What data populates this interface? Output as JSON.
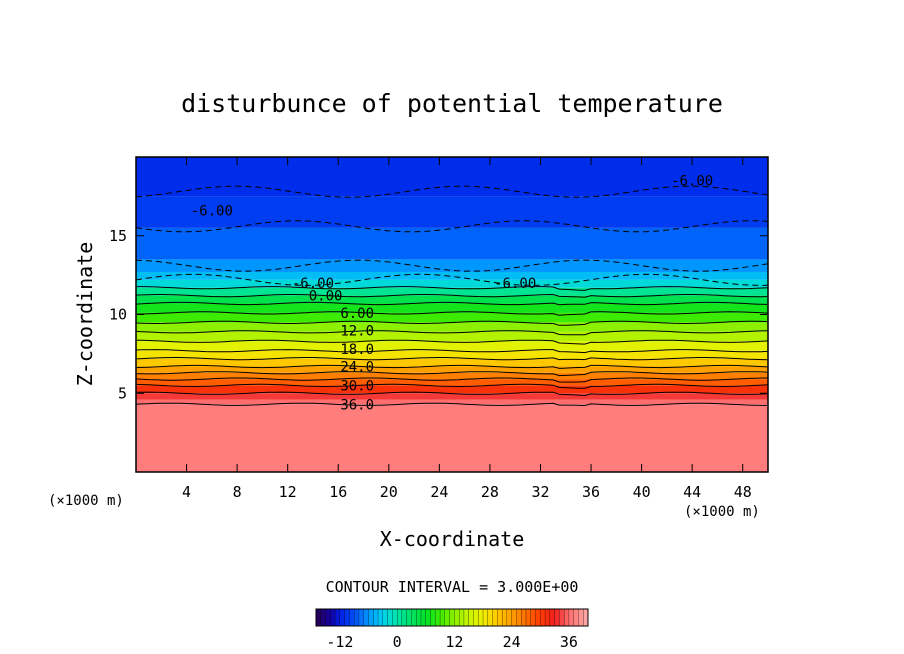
{
  "chart_data": {
    "type": "contour",
    "title": "disturbunce of potential temperature",
    "xlabel": "X-coordinate",
    "ylabel": "Z-coordinate",
    "x_unit": "(×1000 m)",
    "y_unit": "(×1000 m)",
    "xlim": [
      0,
      50
    ],
    "ylim": [
      0,
      20
    ],
    "x_ticks": [
      "4",
      "8",
      "12",
      "16",
      "20",
      "24",
      "28",
      "32",
      "36",
      "40",
      "44",
      "48"
    ],
    "x_tick_values": [
      4,
      8,
      12,
      16,
      20,
      24,
      28,
      32,
      36,
      40,
      44,
      48
    ],
    "y_ticks": [
      "5",
      "10",
      "15"
    ],
    "y_tick_values": [
      5,
      10,
      15
    ],
    "contour_interval_text": "CONTOUR INTERVAL = 3.000E+00",
    "contour_interval": 3.0,
    "contour_labels": [
      {
        "text": "-6.00",
        "x": 30,
        "z": 12.0
      },
      {
        "text": "-6.00",
        "x": 14,
        "z": 12.0
      },
      {
        "text": "-6.00",
        "x": 6,
        "z": 16.6
      },
      {
        "text": "-6.00",
        "x": 44,
        "z": 18.5
      },
      {
        "text": "0.00",
        "x": 15,
        "z": 11.2
      },
      {
        "text": "6.00",
        "x": 17.5,
        "z": 10.1
      },
      {
        "text": "12.0",
        "x": 17.5,
        "z": 9.0
      },
      {
        "text": "18.0",
        "x": 17.5,
        "z": 7.8
      },
      {
        "text": "24.0",
        "x": 17.5,
        "z": 6.7
      },
      {
        "text": "30.0",
        "x": 17.5,
        "z": 5.5
      },
      {
        "text": "36.0",
        "x": 17.5,
        "z": 4.3
      }
    ],
    "bands": [
      {
        "z0": 0.0,
        "z1": 4.3,
        "value": 37
      },
      {
        "z0": 4.3,
        "z1": 4.6,
        "value": 36
      },
      {
        "z0": 4.6,
        "z1": 5.0,
        "value": 34
      },
      {
        "z0": 5.0,
        "z1": 5.5,
        "value": 31
      },
      {
        "z0": 5.5,
        "z1": 5.9,
        "value": 28
      },
      {
        "z0": 5.9,
        "z1": 6.3,
        "value": 26
      },
      {
        "z0": 6.3,
        "z1": 6.7,
        "value": 24
      },
      {
        "z0": 6.7,
        "z1": 7.2,
        "value": 21
      },
      {
        "z0": 7.2,
        "z1": 7.7,
        "value": 19
      },
      {
        "z0": 7.7,
        "z1": 8.3,
        "value": 17
      },
      {
        "z0": 8.3,
        "z1": 8.9,
        "value": 14
      },
      {
        "z0": 8.9,
        "z1": 9.5,
        "value": 12
      },
      {
        "z0": 9.5,
        "z1": 10.1,
        "value": 9
      },
      {
        "z0": 10.1,
        "z1": 10.7,
        "value": 7
      },
      {
        "z0": 10.7,
        "z1": 11.2,
        "value": 4
      },
      {
        "z0": 11.2,
        "z1": 11.7,
        "value": 1
      },
      {
        "z0": 11.7,
        "z1": 12.2,
        "value": -2
      },
      {
        "z0": 12.2,
        "z1": 12.7,
        "value": -4
      },
      {
        "z0": 12.7,
        "z1": 13.5,
        "value": -6
      },
      {
        "z0": 13.5,
        "z1": 15.5,
        "value": -8
      },
      {
        "z0": 15.5,
        "z1": 17.5,
        "value": -10
      },
      {
        "z0": 17.5,
        "z1": 20.0,
        "value": -11
      }
    ],
    "contour_levels_z": [
      4.3,
      5.0,
      5.5,
      5.9,
      6.3,
      6.7,
      7.2,
      7.7,
      8.3,
      8.9,
      9.5,
      10.1,
      10.7,
      11.2,
      11.7
    ],
    "colorbar": {
      "min": -17,
      "max": 40,
      "ticks": [
        "-12",
        "0",
        "12",
        "24",
        "36"
      ],
      "tick_values": [
        -12,
        0,
        12,
        24,
        36
      ]
    }
  }
}
